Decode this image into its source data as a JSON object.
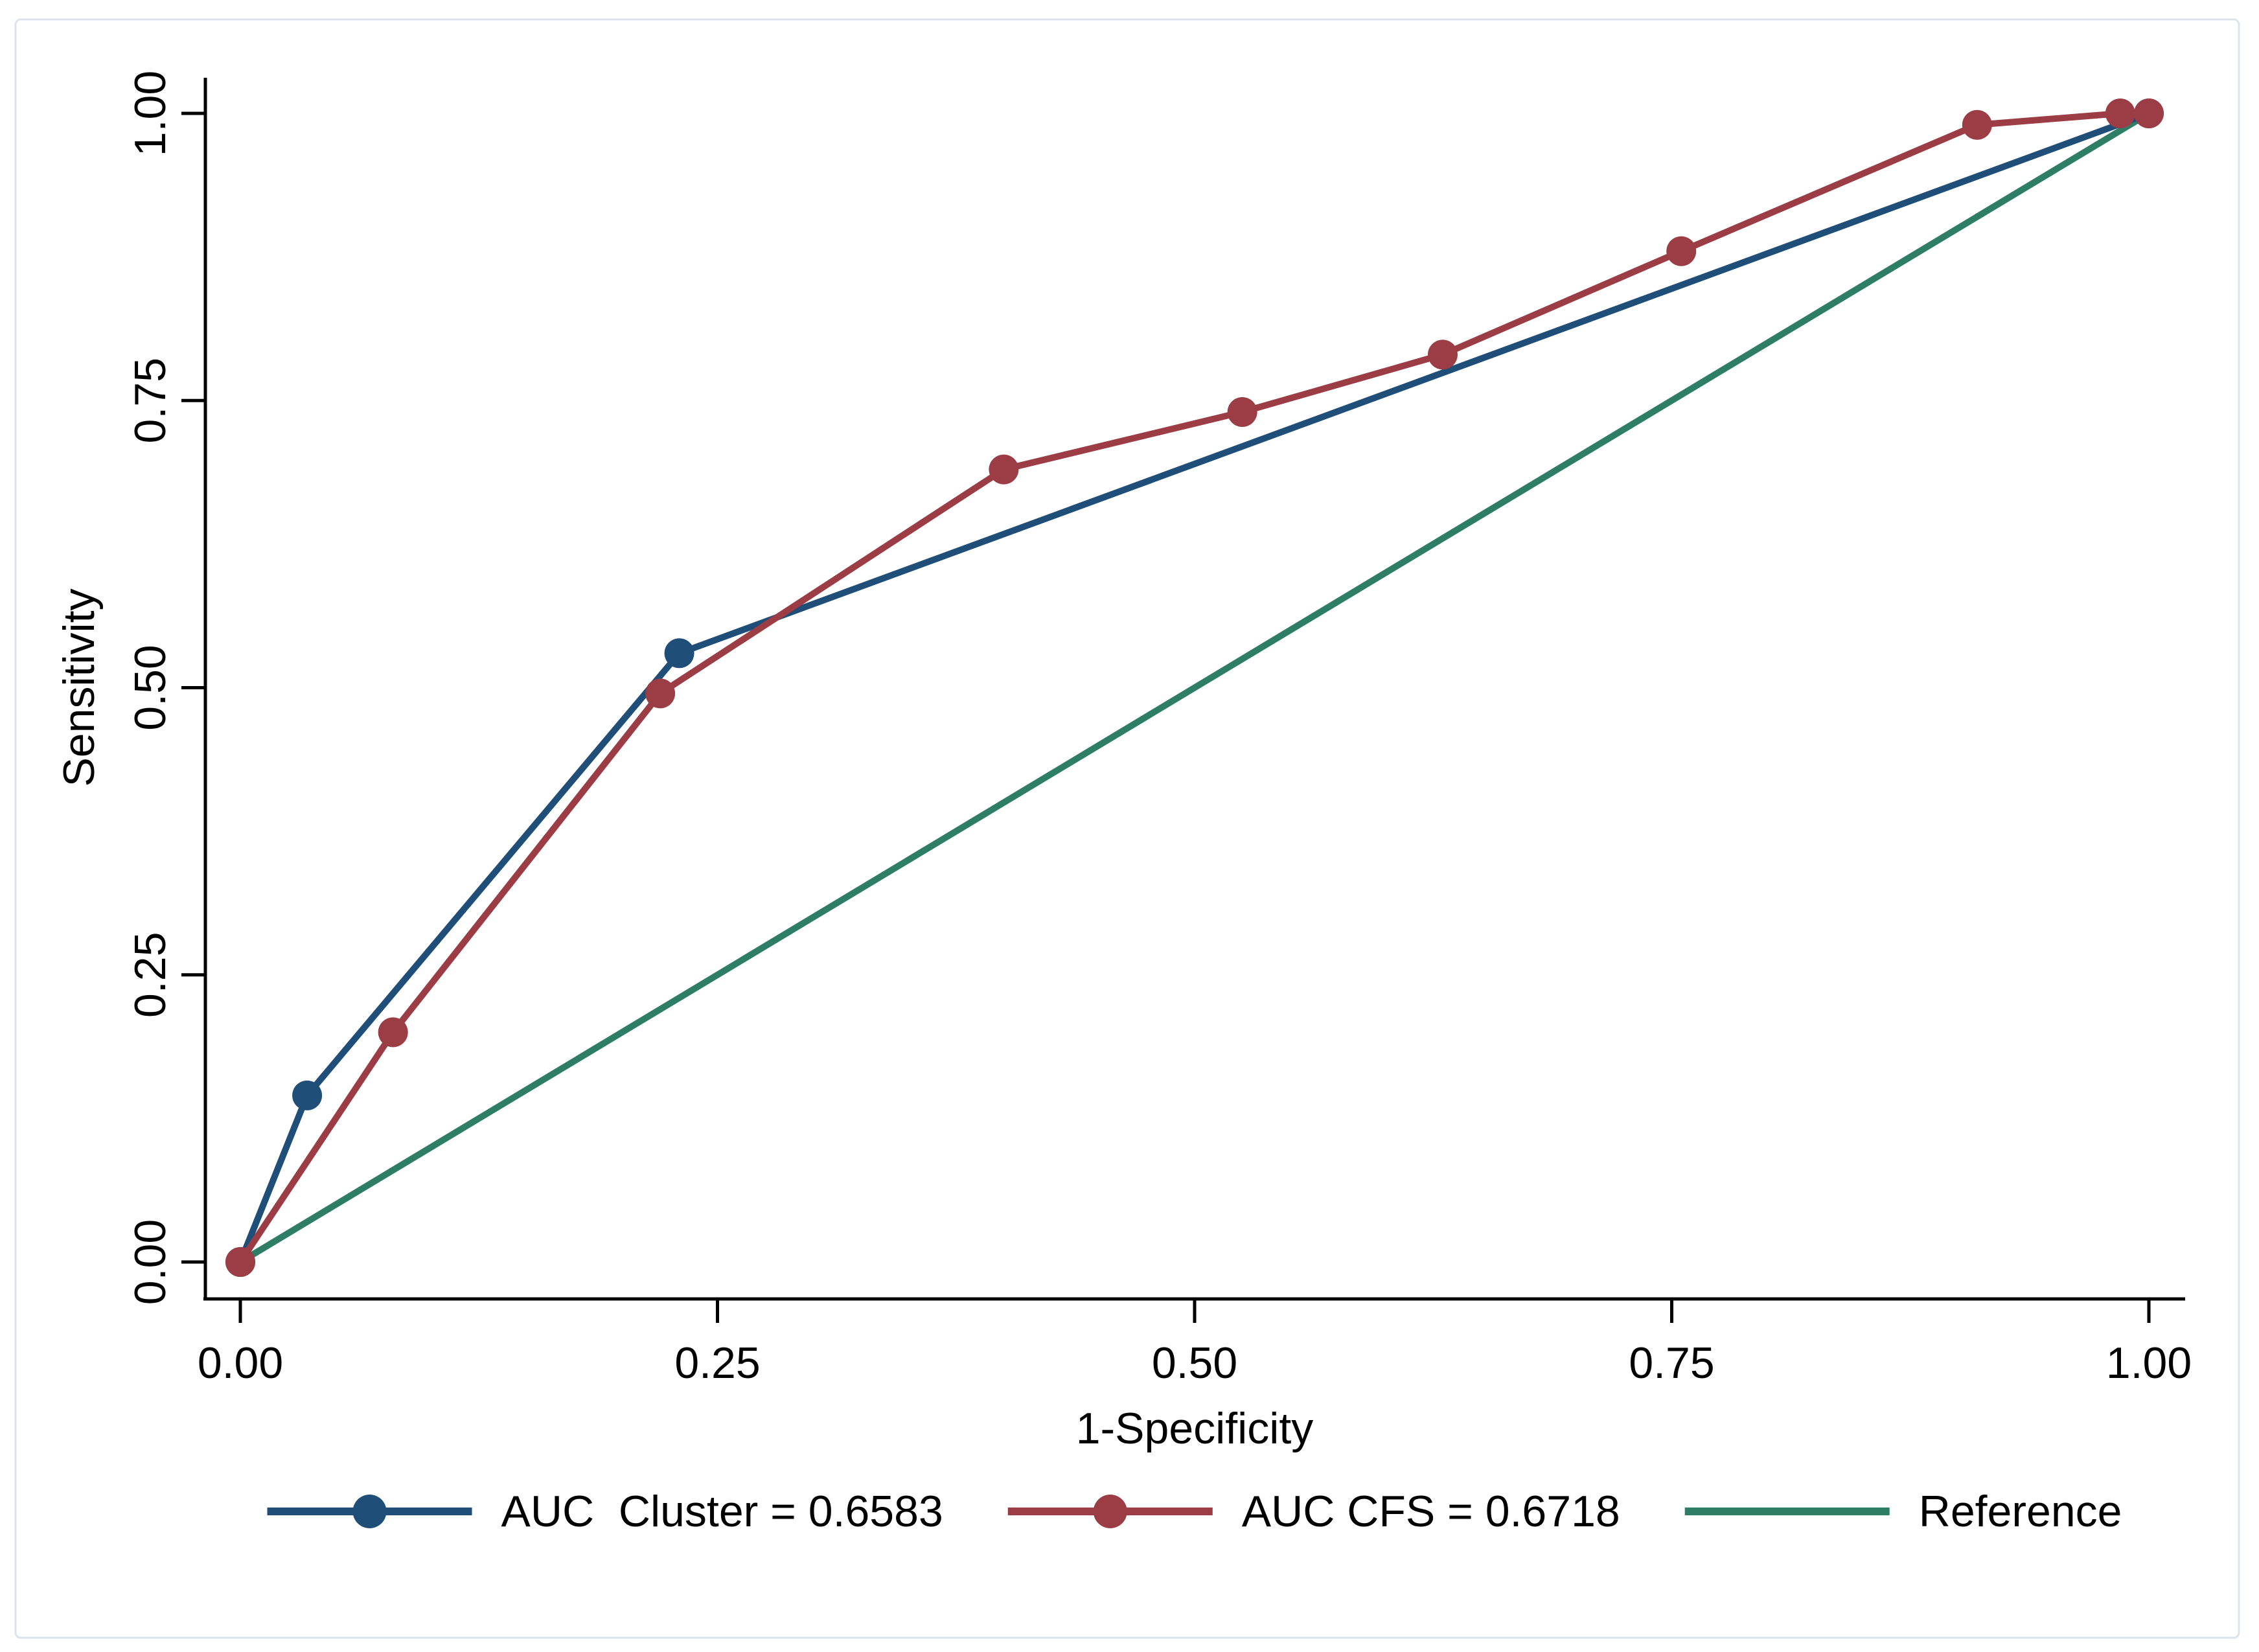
{
  "figure": {
    "background": "#ffffff",
    "border_color": "#dbe4ec"
  },
  "chart_data": {
    "type": "line",
    "title": "",
    "xlabel": "1-Specificity",
    "ylabel": "Sensitivity",
    "xlim": [
      0,
      1
    ],
    "ylim": [
      0,
      1
    ],
    "x_ticks": [
      "0.00",
      "0.25",
      "0.50",
      "0.75",
      "1.00"
    ],
    "y_ticks": [
      "0.00",
      "0.25",
      "0.50",
      "0.75",
      "1.00"
    ],
    "grid": false,
    "legend_position": "bottom",
    "axis_color": "#000000",
    "series": [
      {
        "key": "cluster",
        "name": "AUC  Cluster = 0.6583",
        "auc": 0.6583,
        "color": "#1F4E79",
        "marker": true,
        "points": [
          [
            0,
            0
          ],
          [
            0.035,
            0.145
          ],
          [
            0.23,
            0.53
          ],
          [
            1,
            1
          ]
        ]
      },
      {
        "key": "cfs",
        "name": "AUC CFS = 0.6718",
        "auc": 0.6718,
        "color": "#9C3C44",
        "marker": true,
        "points": [
          [
            0,
            0
          ],
          [
            0.08,
            0.2
          ],
          [
            0.22,
            0.495
          ],
          [
            0.4,
            0.69
          ],
          [
            0.525,
            0.74
          ],
          [
            0.63,
            0.79
          ],
          [
            0.755,
            0.88
          ],
          [
            0.91,
            0.99
          ],
          [
            0.985,
            1.0
          ],
          [
            1.0,
            1.0
          ]
        ]
      },
      {
        "key": "reference",
        "name": "Reference",
        "color": "#2E7D67",
        "marker": false,
        "points": [
          [
            0,
            0
          ],
          [
            1,
            1
          ]
        ]
      }
    ]
  }
}
